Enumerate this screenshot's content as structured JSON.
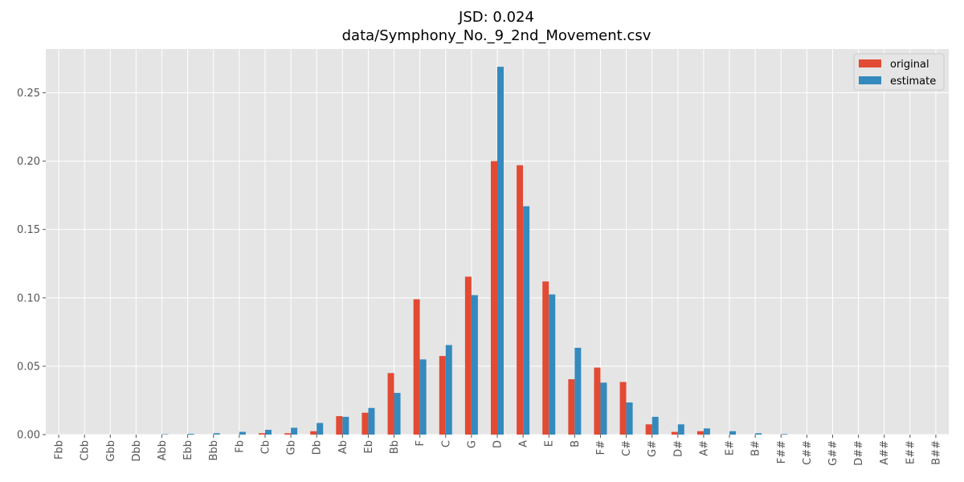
{
  "chart_data": {
    "type": "bar",
    "title_lines": [
      "JSD: 0.024",
      "data/Symphony_No._9_2nd_Movement.csv"
    ],
    "xlabel": "",
    "ylabel": "",
    "ylim": [
      0,
      0.282
    ],
    "y_ticks": [
      "0.00",
      "0.05",
      "0.10",
      "0.15",
      "0.20",
      "0.25"
    ],
    "y_tick_values": [
      0,
      0.05,
      0.1,
      0.15,
      0.2,
      0.25
    ],
    "grid": true,
    "legend_position": "top-right",
    "categories": [
      "Fbb",
      "Cbb",
      "Gbb",
      "Dbb",
      "Abb",
      "Ebb",
      "Bbb",
      "Fb",
      "Cb",
      "Gb",
      "Db",
      "Ab",
      "Eb",
      "Bb",
      "F",
      "C",
      "G",
      "D",
      "A",
      "E",
      "B",
      "F#",
      "C#",
      "G#",
      "D#",
      "A#",
      "E#",
      "B#",
      "F##",
      "C##",
      "G##",
      "D##",
      "A##",
      "E##",
      "B##"
    ],
    "series": [
      {
        "name": "original",
        "color": "#E24A33",
        "values": [
          0,
          0,
          0,
          0,
          0,
          0,
          0,
          0,
          0.001,
          0.001,
          0.0025,
          0.0135,
          0.016,
          0.045,
          0.099,
          0.0575,
          0.1155,
          0.2,
          0.197,
          0.112,
          0.0405,
          0.049,
          0.0385,
          0.0075,
          0.002,
          0.0025,
          0,
          0,
          0,
          0,
          0,
          0,
          0,
          0,
          0
        ]
      },
      {
        "name": "estimate",
        "color": "#348ABD",
        "values": [
          0,
          0,
          0,
          0,
          0.0003,
          0.0006,
          0.001,
          0.002,
          0.0035,
          0.005,
          0.0085,
          0.013,
          0.0195,
          0.0305,
          0.055,
          0.0655,
          0.102,
          0.269,
          0.167,
          0.1025,
          0.0635,
          0.038,
          0.0235,
          0.013,
          0.0075,
          0.0045,
          0.0025,
          0.001,
          0.0004,
          0,
          0,
          0,
          0,
          0,
          0
        ]
      }
    ]
  }
}
